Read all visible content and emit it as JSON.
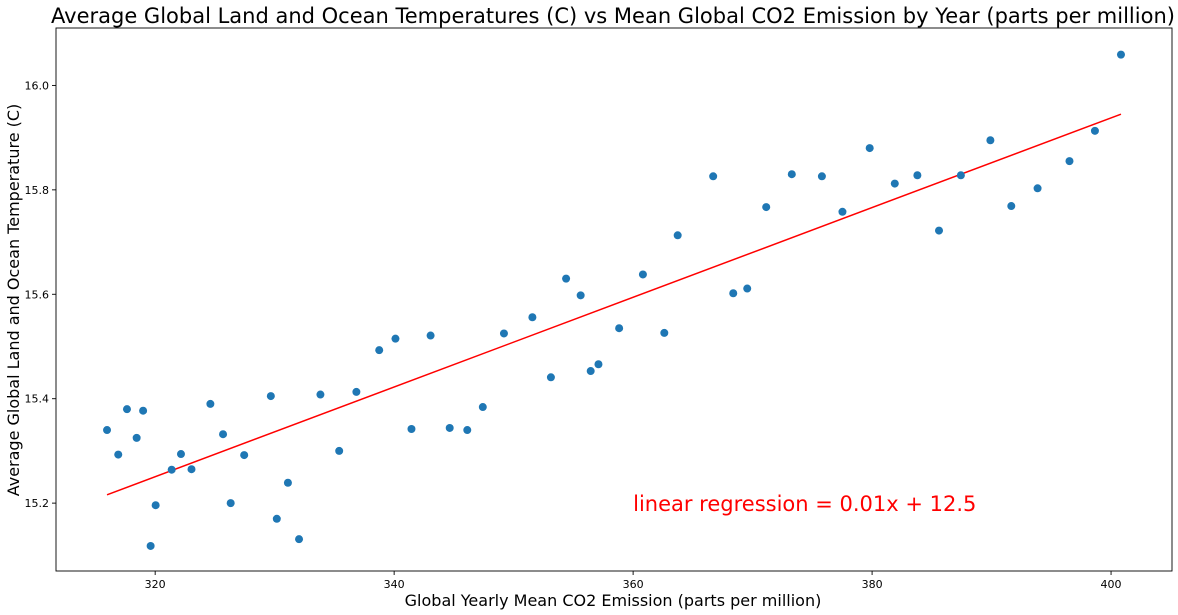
{
  "chart_data": {
    "type": "scatter",
    "title": "Average Global Land and Ocean Temperatures (C)  vs  Mean Global CO2 Emission by Year (parts per million)",
    "xlabel": "Global Yearly Mean CO2 Emission (parts per million)",
    "ylabel": "Average Global Land and Ocean Temperature (C)",
    "xlim": [
      311.7,
      405.1
    ],
    "ylim": [
      15.07,
      16.11
    ],
    "xticks": [
      320,
      340,
      360,
      380,
      400
    ],
    "yticks": [
      15.2,
      15.4,
      15.6,
      15.8,
      16.0
    ],
    "xtick_labels": [
      "320",
      "340",
      "360",
      "380",
      "400"
    ],
    "ytick_labels": [
      "15.2",
      "15.4",
      "15.6",
      "15.8",
      "16.0"
    ],
    "grid": false,
    "point_color": "#1f77b4",
    "line_color": "#ff0000",
    "points": [
      {
        "x": 315.97,
        "y": 15.34
      },
      {
        "x": 316.91,
        "y": 15.293
      },
      {
        "x": 317.64,
        "y": 15.38
      },
      {
        "x": 318.45,
        "y": 15.325
      },
      {
        "x": 318.99,
        "y": 15.377
      },
      {
        "x": 319.62,
        "y": 15.118
      },
      {
        "x": 320.04,
        "y": 15.196
      },
      {
        "x": 321.38,
        "y": 15.264
      },
      {
        "x": 322.16,
        "y": 15.294
      },
      {
        "x": 323.04,
        "y": 15.265
      },
      {
        "x": 324.62,
        "y": 15.39
      },
      {
        "x": 325.68,
        "y": 15.332
      },
      {
        "x": 326.32,
        "y": 15.2
      },
      {
        "x": 327.45,
        "y": 15.292
      },
      {
        "x": 329.68,
        "y": 15.405
      },
      {
        "x": 330.18,
        "y": 15.17
      },
      {
        "x": 331.11,
        "y": 15.239
      },
      {
        "x": 332.04,
        "y": 15.131
      },
      {
        "x": 333.83,
        "y": 15.408
      },
      {
        "x": 335.4,
        "y": 15.3
      },
      {
        "x": 336.84,
        "y": 15.413
      },
      {
        "x": 338.75,
        "y": 15.493
      },
      {
        "x": 340.11,
        "y": 15.515
      },
      {
        "x": 341.45,
        "y": 15.342
      },
      {
        "x": 343.05,
        "y": 15.521
      },
      {
        "x": 344.65,
        "y": 15.344
      },
      {
        "x": 346.12,
        "y": 15.34
      },
      {
        "x": 347.42,
        "y": 15.384
      },
      {
        "x": 349.19,
        "y": 15.525
      },
      {
        "x": 351.57,
        "y": 15.556
      },
      {
        "x": 353.12,
        "y": 15.441
      },
      {
        "x": 354.39,
        "y": 15.63
      },
      {
        "x": 355.61,
        "y": 15.598
      },
      {
        "x": 356.45,
        "y": 15.453
      },
      {
        "x": 357.1,
        "y": 15.466
      },
      {
        "x": 358.83,
        "y": 15.535
      },
      {
        "x": 360.82,
        "y": 15.638
      },
      {
        "x": 362.61,
        "y": 15.526
      },
      {
        "x": 363.73,
        "y": 15.713
      },
      {
        "x": 366.7,
        "y": 15.826
      },
      {
        "x": 368.38,
        "y": 15.602
      },
      {
        "x": 369.55,
        "y": 15.611
      },
      {
        "x": 371.14,
        "y": 15.767
      },
      {
        "x": 373.28,
        "y": 15.83
      },
      {
        "x": 375.8,
        "y": 15.826
      },
      {
        "x": 377.52,
        "y": 15.758
      },
      {
        "x": 379.8,
        "y": 15.88
      },
      {
        "x": 381.9,
        "y": 15.812
      },
      {
        "x": 383.79,
        "y": 15.828
      },
      {
        "x": 385.6,
        "y": 15.722
      },
      {
        "x": 387.43,
        "y": 15.828
      },
      {
        "x": 389.9,
        "y": 15.895
      },
      {
        "x": 391.65,
        "y": 15.769
      },
      {
        "x": 393.85,
        "y": 15.803
      },
      {
        "x": 396.52,
        "y": 15.855
      },
      {
        "x": 398.65,
        "y": 15.913
      },
      {
        "x": 400.83,
        "y": 16.059
      }
    ],
    "regression_line": {
      "x1": 315.97,
      "y1": 15.216,
      "x2": 400.83,
      "y2": 15.945
    },
    "annotation": {
      "text": "linear regression = 0.01x + 12.5",
      "x": 360,
      "y": 15.2,
      "color": "#ff0000"
    }
  }
}
